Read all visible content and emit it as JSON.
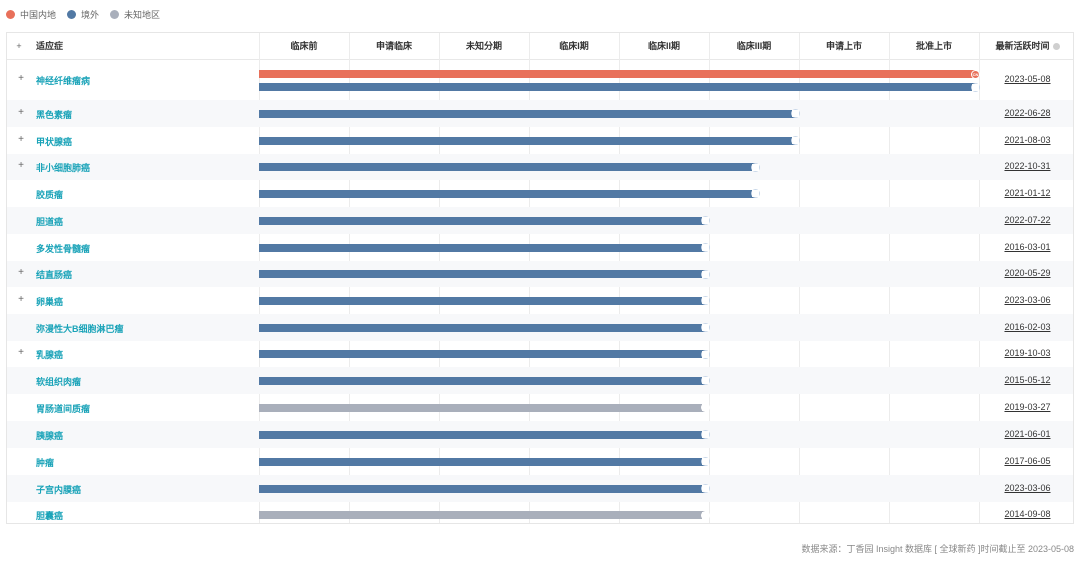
{
  "legend": [
    {
      "label": "中国内地",
      "color": "#e8705a",
      "icon": "circle-dot-icon"
    },
    {
      "label": "境外",
      "color": "#5279a4",
      "icon": "circle-dot-icon"
    },
    {
      "label": "未知地区",
      "color": "#a9afbb",
      "icon": "circle-dot-icon"
    }
  ],
  "header": {
    "expand": "+",
    "indication": "适应症",
    "stages": [
      "临床前",
      "申请临床",
      "未知分期",
      "临床I期",
      "临床II期",
      "临床III期",
      "申请上市",
      "批准上市"
    ],
    "latest": "最新活跃时间"
  },
  "rows": [
    {
      "name": "神经纤维瘤病",
      "expandable": true,
      "date": "2023-05-08",
      "bars": [
        {
          "region": "cn",
          "progress": 8,
          "marker": "CN"
        },
        {
          "region": "ov",
          "progress": 8,
          "marker": "globe"
        }
      ]
    },
    {
      "name": "黑色素瘤",
      "expandable": true,
      "date": "2022-06-28",
      "bars": [
        {
          "region": "ov",
          "progress": 6,
          "marker": "globe"
        }
      ]
    },
    {
      "name": "甲状腺癌",
      "expandable": true,
      "date": "2021-08-03",
      "bars": [
        {
          "region": "ov",
          "progress": 6,
          "marker": "globe"
        }
      ]
    },
    {
      "name": "非小细胞肺癌",
      "expandable": true,
      "date": "2022-10-31",
      "bars": [
        {
          "region": "ov",
          "progress": 5.55,
          "marker": "globe"
        }
      ]
    },
    {
      "name": "胶质瘤",
      "expandable": false,
      "date": "2021-01-12",
      "bars": [
        {
          "region": "ov",
          "progress": 5.55,
          "marker": "globe"
        }
      ]
    },
    {
      "name": "胆道癌",
      "expandable": false,
      "date": "2022-07-22",
      "bars": [
        {
          "region": "ov",
          "progress": 5,
          "marker": "globe"
        }
      ]
    },
    {
      "name": "多发性骨髓瘤",
      "expandable": false,
      "date": "2016-03-01",
      "bars": [
        {
          "region": "ov",
          "progress": 5,
          "marker": "globe"
        }
      ]
    },
    {
      "name": "结直肠癌",
      "expandable": true,
      "date": "2020-05-29",
      "bars": [
        {
          "region": "ov",
          "progress": 5,
          "marker": "globe"
        }
      ]
    },
    {
      "name": "卵巢癌",
      "expandable": true,
      "date": "2023-03-06",
      "bars": [
        {
          "region": "ov",
          "progress": 5,
          "marker": "globe"
        }
      ]
    },
    {
      "name": "弥漫性大B细胞淋巴瘤",
      "expandable": false,
      "date": "2016-02-03",
      "bars": [
        {
          "region": "ov",
          "progress": 5,
          "marker": "globe"
        }
      ]
    },
    {
      "name": "乳腺癌",
      "expandable": true,
      "date": "2019-10-03",
      "bars": [
        {
          "region": "ov",
          "progress": 5,
          "marker": "globe"
        }
      ]
    },
    {
      "name": "软组织肉瘤",
      "expandable": false,
      "date": "2015-05-12",
      "bars": [
        {
          "region": "ov",
          "progress": 5,
          "marker": "globe"
        }
      ]
    },
    {
      "name": "胃肠道间质瘤",
      "expandable": false,
      "date": "2019-03-27",
      "bars": [
        {
          "region": "uk",
          "progress": 5,
          "marker": "globe"
        }
      ]
    },
    {
      "name": "胰腺癌",
      "expandable": false,
      "date": "2021-06-01",
      "bars": [
        {
          "region": "ov",
          "progress": 5,
          "marker": "globe"
        }
      ]
    },
    {
      "name": "肿瘤",
      "expandable": false,
      "date": "2017-06-05",
      "bars": [
        {
          "region": "ov",
          "progress": 5,
          "marker": "globe"
        }
      ]
    },
    {
      "name": "子宫内膜癌",
      "expandable": false,
      "date": "2023-03-06",
      "bars": [
        {
          "region": "ov",
          "progress": 5,
          "marker": "globe"
        }
      ]
    },
    {
      "name": "胆囊癌",
      "expandable": false,
      "date": "2014-09-08",
      "bars": [
        {
          "region": "uk",
          "progress": 5,
          "marker": "globe"
        }
      ]
    }
  ],
  "expand_symbol": "+",
  "footer": "数据来源：丁香园 Insight 数据库 [ 全球新药 ]时间截止至 2023-05-08"
}
